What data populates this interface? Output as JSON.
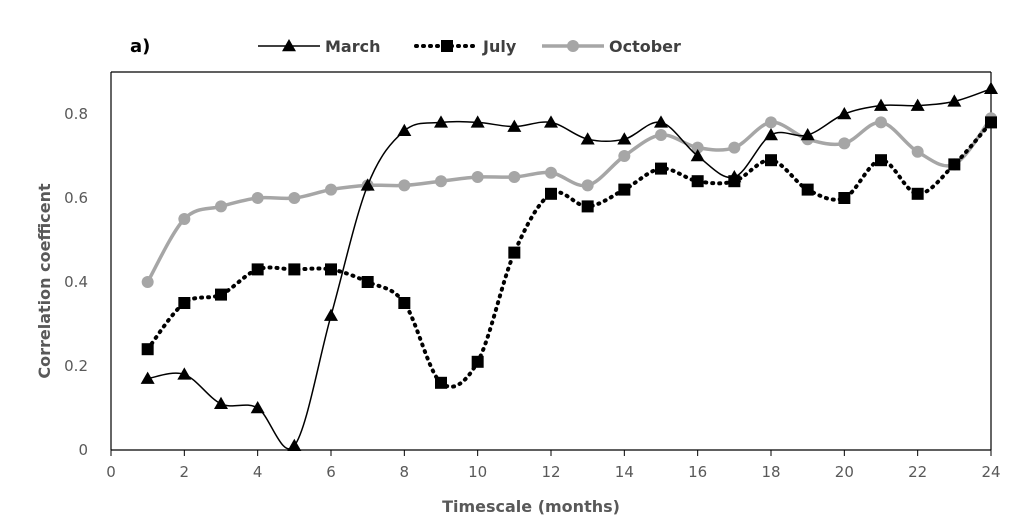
{
  "chart_data": {
    "type": "line",
    "panel_label": "a)",
    "xlabel": "Timescale  (months)",
    "ylabel": "Correlation coefficent",
    "xlim": [
      0,
      24
    ],
    "ylim": [
      0,
      0.9
    ],
    "x_ticks": [
      "0",
      "2",
      "4",
      "6",
      "8",
      "10",
      "12",
      "14",
      "16",
      "18",
      "20",
      "22",
      "24"
    ],
    "y_ticks": [
      "0",
      "0.2",
      "0.4",
      "0.6",
      "0.8"
    ],
    "legend_position": "top",
    "grid": false,
    "x": [
      1,
      2,
      3,
      4,
      5,
      6,
      7,
      8,
      9,
      10,
      11,
      12,
      13,
      14,
      15,
      16,
      17,
      18,
      19,
      20,
      21,
      22,
      23,
      24
    ],
    "series": [
      {
        "name": "March",
        "color": "#000000",
        "marker": "triangle",
        "line_style": "solid",
        "values": [
          0.17,
          0.18,
          0.11,
          0.1,
          0.01,
          0.32,
          0.63,
          0.76,
          0.78,
          0.78,
          0.77,
          0.78,
          0.74,
          0.74,
          0.78,
          0.7,
          0.65,
          0.75,
          0.75,
          0.8,
          0.82,
          0.82,
          0.83,
          0.86
        ]
      },
      {
        "name": "July",
        "color": "#000000",
        "marker": "square",
        "line_style": "dotted",
        "values": [
          0.24,
          0.35,
          0.37,
          0.43,
          0.43,
          0.43,
          0.4,
          0.35,
          0.16,
          0.21,
          0.47,
          0.61,
          0.58,
          0.62,
          0.67,
          0.64,
          0.64,
          0.69,
          0.62,
          0.6,
          0.69,
          0.61,
          0.68,
          0.78
        ]
      },
      {
        "name": "October",
        "color": "#a6a6a6",
        "marker": "circle",
        "line_style": "solid",
        "values": [
          0.4,
          0.55,
          0.58,
          0.6,
          0.6,
          0.62,
          0.63,
          0.63,
          0.64,
          0.65,
          0.65,
          0.66,
          0.63,
          0.7,
          0.75,
          0.72,
          0.72,
          0.78,
          0.74,
          0.73,
          0.78,
          0.71,
          0.68,
          0.79
        ]
      }
    ]
  }
}
